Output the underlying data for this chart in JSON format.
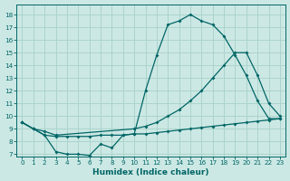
{
  "xlabel": "Humidex (Indice chaleur)",
  "background_color": "#cce8e4",
  "grid_color": "#aad4cc",
  "line_color": "#006666",
  "xlim": [
    -0.5,
    23.5
  ],
  "ylim": [
    6.8,
    18.8
  ],
  "xticks": [
    0,
    1,
    2,
    3,
    4,
    5,
    6,
    7,
    8,
    9,
    10,
    11,
    12,
    13,
    14,
    15,
    16,
    17,
    18,
    19,
    20,
    21,
    22,
    23
  ],
  "yticks": [
    7,
    8,
    9,
    10,
    11,
    12,
    13,
    14,
    15,
    16,
    17,
    18
  ],
  "line1_x": [
    0,
    1,
    2,
    3,
    4,
    5,
    6,
    7,
    8,
    9,
    10,
    11,
    12,
    13,
    14,
    15,
    16,
    17,
    18,
    19,
    20,
    21,
    22,
    23
  ],
  "line1_y": [
    9.5,
    9.0,
    8.5,
    7.2,
    7.0,
    7.0,
    6.9,
    7.8,
    7.5,
    8.5,
    8.6,
    12.0,
    14.8,
    17.2,
    17.5,
    18.0,
    17.5,
    17.2,
    16.3,
    14.8,
    13.2,
    11.2,
    9.8,
    9.8
  ],
  "line2_x": [
    0,
    1,
    2,
    3,
    10,
    11,
    12,
    13,
    14,
    15,
    16,
    17,
    18,
    19,
    20,
    21,
    22,
    23
  ],
  "line2_y": [
    9.5,
    9.0,
    8.8,
    8.5,
    9.0,
    9.2,
    9.5,
    10.0,
    10.5,
    11.2,
    12.0,
    13.0,
    14.0,
    15.0,
    15.0,
    13.2,
    11.0,
    10.0
  ],
  "line3_x": [
    0,
    1,
    2,
    3,
    4,
    5,
    6,
    7,
    8,
    9,
    10,
    11,
    12,
    13,
    14,
    15,
    16,
    17,
    18,
    19,
    20,
    21,
    22,
    23
  ],
  "line3_y": [
    9.5,
    9.0,
    8.5,
    8.4,
    8.4,
    8.4,
    8.4,
    8.5,
    8.5,
    8.5,
    8.6,
    8.6,
    8.7,
    8.8,
    8.9,
    9.0,
    9.1,
    9.2,
    9.3,
    9.4,
    9.5,
    9.6,
    9.7,
    9.8
  ]
}
